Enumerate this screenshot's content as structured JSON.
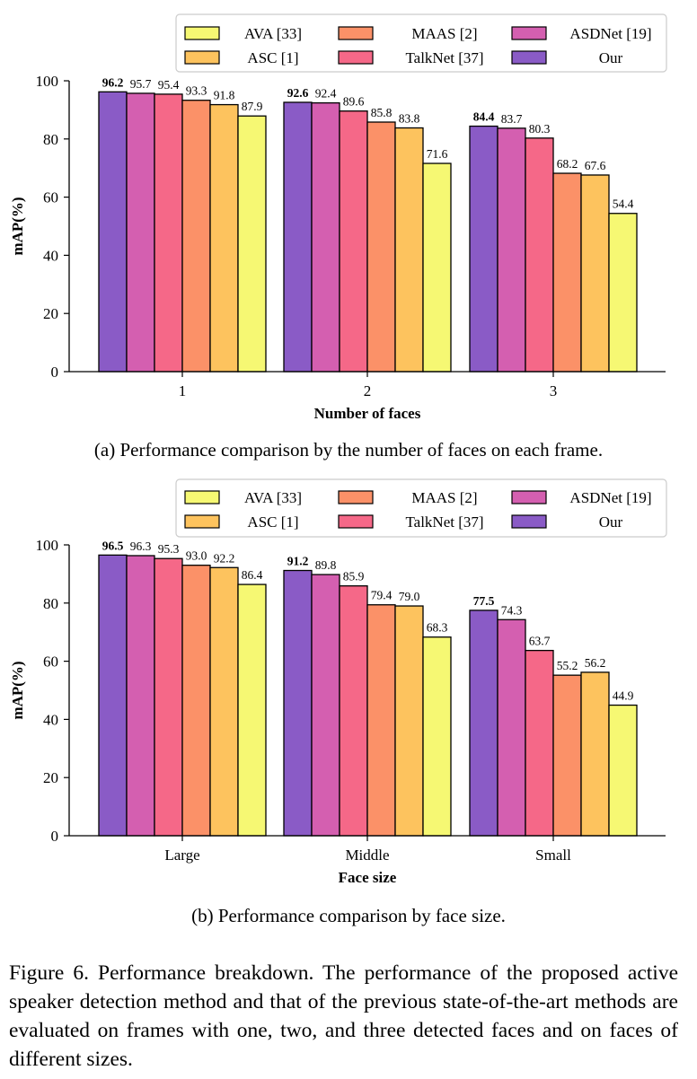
{
  "chart_data": [
    {
      "type": "bar",
      "xlabel": "Number of faces",
      "ylabel": "mAP(%)",
      "ylim": [
        0,
        100
      ],
      "yticks": [
        0,
        20,
        40,
        60,
        80,
        100
      ],
      "categories": [
        "1",
        "2",
        "3"
      ],
      "legend_position": "top",
      "legend_order": [
        "AVA [33]",
        "ASC [1]",
        "MAAS [2]",
        "TalkNet [37]",
        "ASDNet [19]",
        "Our"
      ],
      "series": [
        {
          "name": "Our",
          "color": "#8a5bc6",
          "values": [
            96.2,
            92.6,
            84.4
          ],
          "bold_labels": true
        },
        {
          "name": "ASDNet [19]",
          "color": "#d45fb0",
          "values": [
            95.7,
            92.4,
            83.7
          ]
        },
        {
          "name": "TalkNet [37]",
          "color": "#f56888",
          "values": [
            95.4,
            89.6,
            80.3
          ]
        },
        {
          "name": "MAAS [2]",
          "color": "#fb9168",
          "values": [
            93.3,
            85.8,
            68.2
          ]
        },
        {
          "name": "ASC [1]",
          "color": "#fdc35e",
          "values": [
            91.8,
            83.8,
            67.6
          ]
        },
        {
          "name": "AVA [33]",
          "color": "#f6f873",
          "values": [
            87.9,
            71.6,
            54.4
          ]
        }
      ]
    },
    {
      "type": "bar",
      "xlabel": "Face size",
      "ylabel": "mAP(%)",
      "ylim": [
        0,
        100
      ],
      "yticks": [
        0,
        20,
        40,
        60,
        80,
        100
      ],
      "categories": [
        "Large",
        "Middle",
        "Small"
      ],
      "legend_position": "top",
      "legend_order": [
        "AVA [33]",
        "ASC [1]",
        "MAAS [2]",
        "TalkNet [37]",
        "ASDNet [19]",
        "Our"
      ],
      "series": [
        {
          "name": "Our",
          "color": "#8a5bc6",
          "values": [
            96.5,
            91.2,
            77.5
          ],
          "bold_labels": true
        },
        {
          "name": "ASDNet [19]",
          "color": "#d45fb0",
          "values": [
            96.3,
            89.8,
            74.3
          ]
        },
        {
          "name": "TalkNet [37]",
          "color": "#f56888",
          "values": [
            95.3,
            85.9,
            63.7
          ]
        },
        {
          "name": "MAAS [2]",
          "color": "#fb9168",
          "values": [
            93.0,
            79.4,
            55.2
          ]
        },
        {
          "name": "ASC [1]",
          "color": "#fdc35e",
          "values": [
            92.2,
            79.0,
            56.2
          ]
        },
        {
          "name": "AVA [33]",
          "color": "#f6f873",
          "values": [
            86.4,
            68.3,
            44.9
          ]
        }
      ]
    }
  ],
  "captions": {
    "a": "(a) Performance comparison by the number of faces on each frame.",
    "b": "(b) Performance comparison by face size.",
    "figure": "Figure 6. Performance breakdown. The performance of the proposed active speaker detection method and that of the previous state-of-the-art methods are evaluated on frames with one, two, and three detected faces and on faces of different sizes."
  }
}
